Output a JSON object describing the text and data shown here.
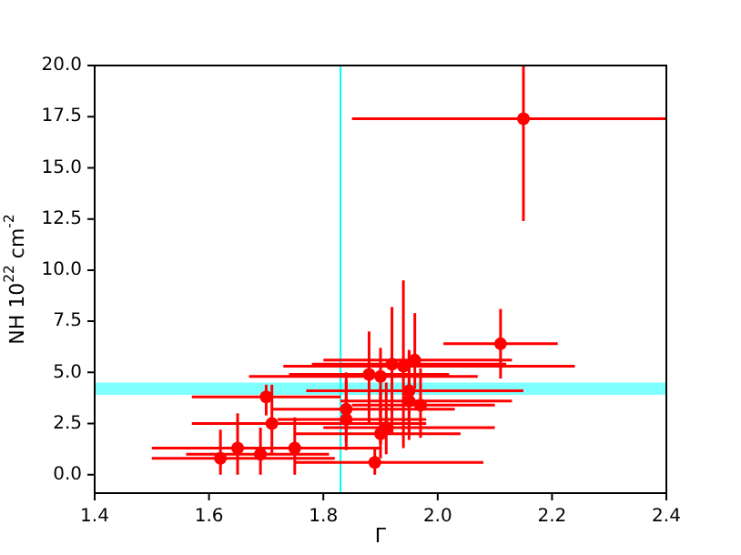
{
  "chart_data": {
    "type": "scatter",
    "xlabel": "Γ",
    "ylabel": "NH 10$^{22}$ cm$^{-2}$",
    "xlim": [
      1.4,
      2.4
    ],
    "ylim": [
      -0.9,
      20
    ],
    "xticks": [
      1.4,
      1.6,
      1.8,
      {
        "value": 2.0,
        "label": "2.0"
      },
      2.2,
      2.4
    ],
    "yticks": [
      {
        "value": 0,
        "label": "0.0"
      },
      2.5,
      {
        "value": 5,
        "label": "5.0"
      },
      7.5,
      {
        "value": 10,
        "label": "10.0"
      },
      12.5,
      {
        "value": 15,
        "label": "15.0"
      },
      17.5,
      {
        "value": 20,
        "label": "20.0"
      }
    ],
    "grid": false,
    "legend": false,
    "marker": "circle",
    "ref_lines": [
      {
        "axis": "x",
        "value": 1.83,
        "color": "#00ffff"
      }
    ],
    "bands": [
      {
        "axis": "y",
        "from": 3.9,
        "to": 4.5,
        "color": "#80ffff"
      }
    ],
    "series": [
      {
        "color": "#ff0000",
        "x": [
          2.15,
          2.11,
          1.96,
          1.94,
          1.92,
          1.88,
          1.9,
          1.7,
          1.95,
          1.97,
          1.95,
          1.71,
          1.84,
          1.84,
          1.9,
          1.91,
          1.75,
          1.65,
          1.62,
          1.69,
          1.89
        ],
        "values": [
          17.4,
          6.4,
          5.6,
          5.3,
          5.4,
          4.9,
          4.8,
          3.8,
          4.1,
          3.4,
          3.6,
          2.5,
          3.2,
          2.7,
          2.0,
          2.3,
          1.3,
          1.3,
          0.8,
          1.0,
          0.6
        ],
        "errors": [
          [
            12.4,
            20
          ],
          [
            4.7,
            8.1
          ],
          [
            4.2,
            7.9
          ],
          [
            1.3,
            9.5
          ],
          [
            2.0,
            8.2
          ],
          [
            2.5,
            7.0
          ],
          [
            1.5,
            6.2
          ],
          [
            2.9,
            4.4
          ],
          [
            1.7,
            6.1
          ],
          [
            1.8,
            5.2
          ],
          [
            2.0,
            6.0
          ],
          [
            1.0,
            4.4
          ],
          [
            1.6,
            5.0
          ],
          [
            1.2,
            4.6
          ],
          [
            0.8,
            4.2
          ],
          [
            1.0,
            4.5
          ],
          [
            0.0,
            2.8
          ],
          [
            0.0,
            3.0
          ],
          [
            0.0,
            2.2
          ],
          [
            0.0,
            2.3
          ],
          [
            0.0,
            1.3
          ]
        ],
        "xerrors": [
          [
            1.85,
            2.4
          ],
          [
            2.01,
            2.21
          ],
          [
            1.8,
            2.13
          ],
          [
            1.73,
            2.24
          ],
          [
            1.78,
            2.12
          ],
          [
            1.74,
            2.02
          ],
          [
            1.67,
            2.07
          ],
          [
            1.57,
            1.83
          ],
          [
            1.77,
            2.15
          ],
          [
            1.85,
            2.1
          ],
          [
            1.83,
            2.13
          ],
          [
            1.57,
            1.98
          ],
          [
            1.71,
            2.03
          ],
          [
            1.72,
            1.98
          ],
          [
            1.75,
            2.04
          ],
          [
            1.8,
            2.1
          ],
          [
            1.57,
            1.9
          ],
          [
            1.5,
            1.81
          ],
          [
            1.5,
            1.82
          ],
          [
            1.56,
            1.81
          ],
          [
            1.75,
            2.08
          ]
        ]
      }
    ]
  }
}
